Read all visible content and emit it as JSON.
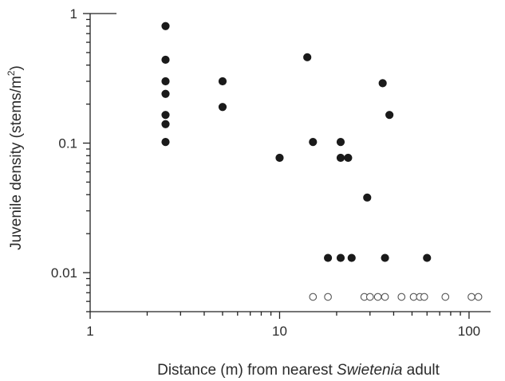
{
  "chart_data": {
    "type": "scatter",
    "xscale": "log",
    "yscale": "log",
    "xlim": [
      1,
      130
    ],
    "ylim": [
      0.005,
      1
    ],
    "xticks": [
      1,
      10,
      100
    ],
    "xtick_labels": [
      "1",
      "10",
      "100"
    ],
    "yticks": [
      0.01,
      0.1,
      1
    ],
    "ytick_labels": [
      "0.01",
      "0.1",
      "1"
    ],
    "xlabel_before": "Distance (m) from nearest ",
    "xlabel_italic": "Swietenia",
    "xlabel_after": " adult",
    "ylabel_main": "Juvenile density (stems/m",
    "ylabel_sup": "2",
    "ylabel_close": ")",
    "grid": false,
    "series": [
      {
        "marker": "filled-circle",
        "color": "#1a1a1a",
        "points": [
          [
            2.5,
            0.8
          ],
          [
            2.5,
            0.44
          ],
          [
            2.5,
            0.3
          ],
          [
            2.5,
            0.24
          ],
          [
            2.5,
            0.165
          ],
          [
            2.5,
            0.14
          ],
          [
            2.5,
            0.102
          ],
          [
            5,
            0.3
          ],
          [
            5,
            0.19
          ],
          [
            10,
            0.077
          ],
          [
            14,
            0.46
          ],
          [
            15,
            0.102
          ],
          [
            18,
            0.013
          ],
          [
            21,
            0.102
          ],
          [
            21,
            0.077
          ],
          [
            21,
            0.013
          ],
          [
            23,
            0.077
          ],
          [
            24,
            0.013
          ],
          [
            29,
            0.038
          ],
          [
            35,
            0.29
          ],
          [
            36,
            0.013
          ],
          [
            38,
            0.165
          ],
          [
            60,
            0.013
          ]
        ]
      },
      {
        "marker": "open-circle",
        "color": "#555555",
        "points": [
          [
            15,
            0.0065
          ],
          [
            18,
            0.0065
          ],
          [
            28,
            0.0065
          ],
          [
            30,
            0.0065
          ],
          [
            33,
            0.0065
          ],
          [
            36,
            0.0065
          ],
          [
            44,
            0.0065
          ],
          [
            51,
            0.0065
          ],
          [
            55,
            0.0065
          ],
          [
            58,
            0.0065
          ],
          [
            75,
            0.0065
          ],
          [
            103,
            0.0065
          ],
          [
            112,
            0.0065
          ]
        ]
      }
    ]
  }
}
